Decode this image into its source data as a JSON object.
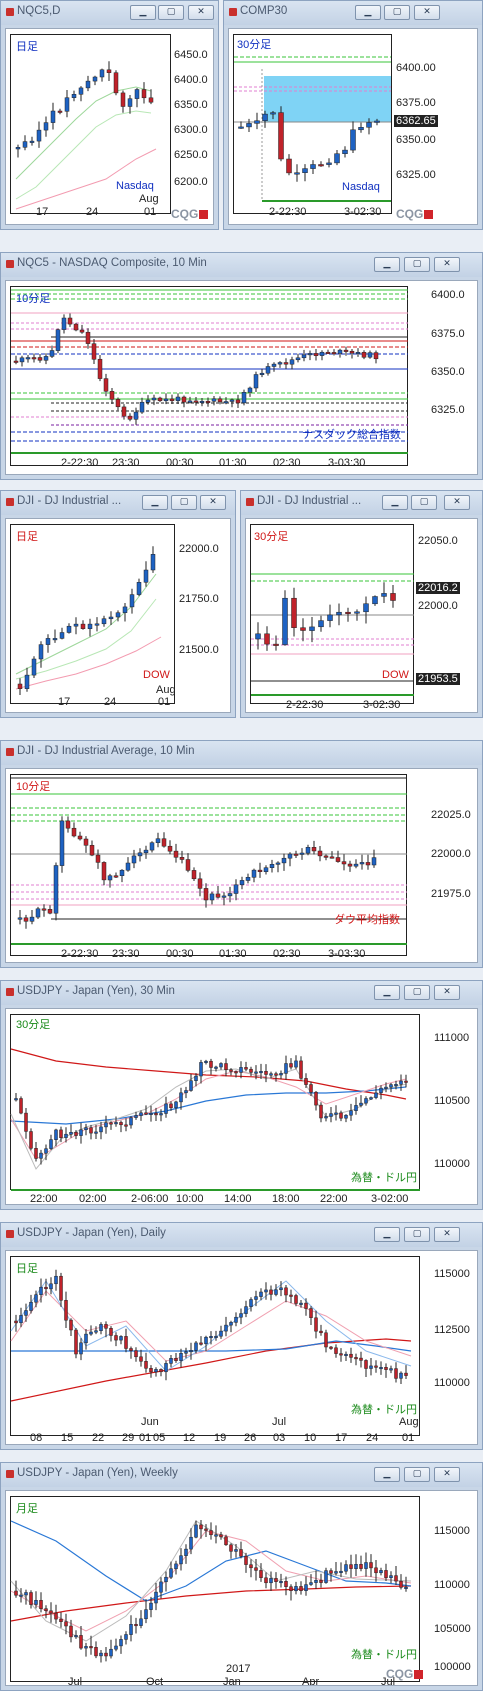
{
  "colors": {
    "up": "#1e62c2",
    "down": "#c0222a",
    "accent_text": "#1030c0",
    "red_text": "#d01818"
  },
  "icons": {
    "minimize": "minimize-icon",
    "restore": "restore-icon",
    "close": "close-icon",
    "cqg": "cqg-logo"
  },
  "window_buttons": {
    "minimize": "▁",
    "restore": "▢",
    "close": "✕"
  },
  "brand": "CQG",
  "windows": [
    {
      "title": "NQC5,D",
      "period": "日足",
      "name": "Nasdaq",
      "month": "Aug",
      "yticks": [
        "6450.0",
        "6400.0",
        "6350.0",
        "6300.0",
        "6250.0",
        "6200.0"
      ],
      "xticks": [
        "17",
        "24",
        "01"
      ]
    },
    {
      "title": "COMP30",
      "period": "30分足",
      "name": "Nasdaq",
      "last": "6362.65",
      "yticks": [
        "6400.00",
        "6375.00",
        "6350.00",
        "6325.00"
      ],
      "xticks": [
        "2-22:30",
        "3-02:30"
      ]
    },
    {
      "title": "NQC5 - NASDAQ Composite, 10 Min",
      "period": "10分足",
      "name": "ナスダック総合指数",
      "yticks": [
        "6400.0",
        "6375.0",
        "6350.0",
        "6325.0"
      ],
      "xticks": [
        "2-22:30",
        "23:30",
        "00:30",
        "01:30",
        "02:30",
        "3-03:30"
      ]
    },
    {
      "title": "DJI - DJ Industrial ...",
      "period": "日足",
      "name": "DOW",
      "month": "Aug",
      "yticks": [
        "22000.0",
        "21750.0",
        "21500.0"
      ],
      "xticks": [
        "17",
        "24",
        "01"
      ]
    },
    {
      "title": "DJI - DJ Industrial ...",
      "period": "30分足",
      "name": "DOW",
      "last": "22016.2",
      "low": "21953.5",
      "yticks": [
        "22050.0",
        "22000.0"
      ],
      "xticks": [
        "2-22:30",
        "3-02:30"
      ]
    },
    {
      "title": "DJI - DJ Industrial Average, 10 Min",
      "period": "10分足",
      "name": "ダウ平均指数",
      "yticks": [
        "22025.0",
        "22000.0",
        "21975.0"
      ],
      "xticks": [
        "2-22:30",
        "23:30",
        "00:30",
        "01:30",
        "02:30",
        "3-03:30"
      ]
    },
    {
      "title": "USDJPY - Japan (Yen), 30 Min",
      "period": "30分足",
      "name": "為替・ドル円",
      "yticks": [
        "111000",
        "110500",
        "110000"
      ],
      "xticks": [
        "22:00",
        "02:00",
        "2-06:00",
        "10:00",
        "14:00",
        "18:00",
        "22:00",
        "3-02:00"
      ]
    },
    {
      "title": "USDJPY - Japan (Yen), Daily",
      "period": "日足",
      "name": "為替・ドル円",
      "month_mid": "Jun",
      "month_mid2": "Jul",
      "month": "Aug",
      "yticks": [
        "115000",
        "112500",
        "110000"
      ],
      "xticks": [
        "08",
        "15",
        "22",
        "29",
        "01",
        "05",
        "12",
        "19",
        "26",
        "03",
        "10",
        "17",
        "24",
        "01"
      ]
    },
    {
      "title": "USDJPY - Japan (Yen), Weekly",
      "period": "月足",
      "name": "為替・ドル円",
      "year": "2017",
      "yticks": [
        "115000",
        "110000",
        "105000",
        "100000"
      ],
      "xticks": [
        "Jul",
        "Oct",
        "Jan",
        "Apr",
        "Jul"
      ]
    }
  ]
}
